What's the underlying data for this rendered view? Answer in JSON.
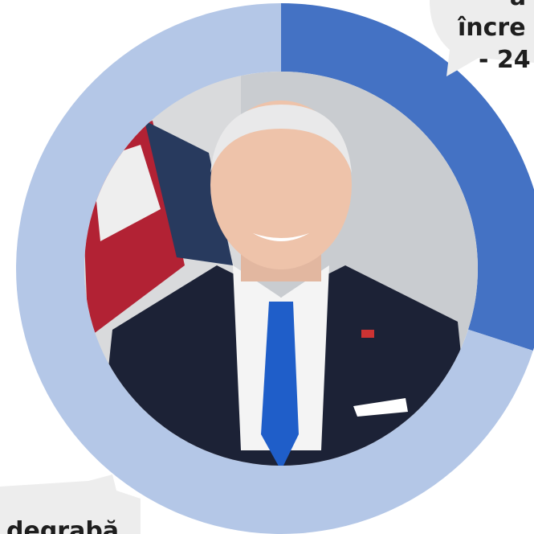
{
  "chart_data": {
    "type": "donut",
    "values": [
      30,
      70
    ],
    "colors": [
      "#4472c4",
      "#b4c7e7"
    ],
    "annotations": [
      "a",
      "încre",
      "- 24",
      "degrabă"
    ]
  }
}
